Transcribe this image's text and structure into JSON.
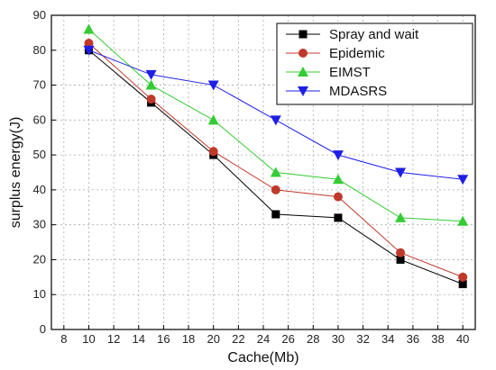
{
  "chart_data": {
    "type": "line",
    "xlabel": "Cache(Mb)",
    "ylabel": "surplus energy(J)",
    "xlim": [
      7,
      41
    ],
    "ylim": [
      0,
      90
    ],
    "xticks": [
      8,
      10,
      12,
      14,
      16,
      18,
      20,
      22,
      24,
      26,
      28,
      30,
      32,
      34,
      36,
      38,
      40
    ],
    "yticks": [
      0,
      10,
      20,
      30,
      40,
      50,
      60,
      70,
      80,
      90
    ],
    "grid": true,
    "legend_position": "top-right",
    "x": [
      10,
      15,
      20,
      25,
      30,
      35,
      40
    ],
    "series": [
      {
        "name": "Spray and wait",
        "color": "#000000",
        "marker": "square",
        "values": [
          80,
          65,
          50,
          33,
          32,
          20,
          13
        ]
      },
      {
        "name": "Epidemic",
        "color": "#c0392b",
        "marker": "circle",
        "values": [
          82,
          66,
          51,
          40,
          38,
          22,
          15
        ]
      },
      {
        "name": "EIMST",
        "color": "#33cc33",
        "marker": "triangle-up",
        "values": [
          86,
          70,
          60,
          45,
          43,
          32,
          31
        ]
      },
      {
        "name": "MDASRS",
        "color": "#1e1ee6",
        "marker": "triangle-down",
        "values": [
          80,
          73,
          70,
          60,
          50,
          45,
          43
        ]
      }
    ]
  }
}
